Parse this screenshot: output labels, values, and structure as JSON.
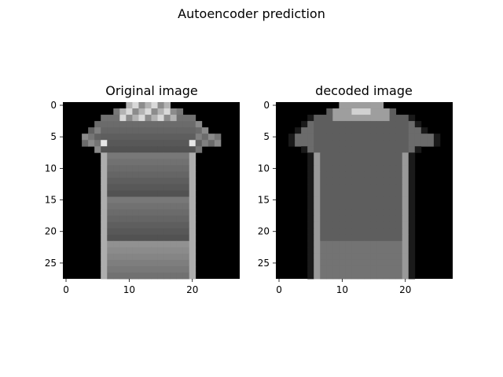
{
  "figure": {
    "suptitle": "Autoencoder prediction"
  },
  "chart_data": [
    {
      "type": "heatmap",
      "title": "Original image",
      "colormap": "gray",
      "grid_size": [
        28,
        28
      ],
      "xlim": [
        -0.5,
        27.5
      ],
      "ylim": [
        27.5,
        -0.5
      ],
      "xticks": [
        "0",
        "10",
        "20"
      ],
      "yticks": [
        "0",
        "5",
        "10",
        "15",
        "20",
        "25"
      ]
    },
    {
      "type": "heatmap",
      "title": "decoded image",
      "colormap": "gray",
      "grid_size": [
        28,
        28
      ],
      "xlim": [
        -0.5,
        27.5
      ],
      "ylim": [
        27.5,
        -0.5
      ],
      "xticks": [
        "0",
        "10",
        "20"
      ],
      "yticks": [
        "0",
        "5",
        "10",
        "15",
        "20",
        "25"
      ]
    }
  ]
}
